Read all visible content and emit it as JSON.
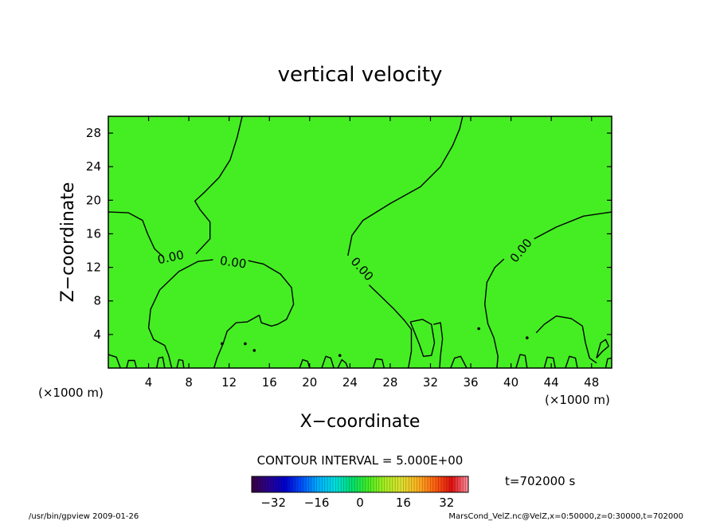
{
  "chart_data": {
    "type": "heatmap",
    "title": "vertical velocity",
    "xlabel": "X−coordinate",
    "ylabel": "Z−coordinate",
    "x_unit_left": "(×1000 m)",
    "x_unit_right": "(×1000 m)",
    "xlim": [
      0,
      50
    ],
    "ylim": [
      0,
      30
    ],
    "xticks": [
      4,
      8,
      12,
      16,
      20,
      24,
      28,
      32,
      36,
      40,
      44,
      48
    ],
    "yticks": [
      4,
      8,
      12,
      16,
      20,
      24,
      28
    ],
    "xtick_labels": [
      "4",
      "8",
      "12",
      "16",
      "20",
      "24",
      "28",
      "32",
      "36",
      "40",
      "44",
      "48"
    ],
    "ytick_labels": [
      "4",
      "8",
      "12",
      "16",
      "20",
      "24",
      "28"
    ],
    "field_background_color": "#44ee22",
    "contour_line_color": "#000000",
    "contour_level": 0.0,
    "contour_labels": [
      {
        "text": "0.00",
        "x": 6.2,
        "y": 13.2,
        "angle": -12
      },
      {
        "text": "0.00",
        "x": 12.4,
        "y": 12.6,
        "angle": 8
      },
      {
        "text": "0.00",
        "x": 25.2,
        "y": 11.8,
        "angle": 48
      },
      {
        "text": "0.00",
        "x": 41.0,
        "y": 14.0,
        "angle": -50
      }
    ],
    "contour_lines": [
      [
        [
          0,
          18.6
        ],
        [
          2,
          18.5
        ],
        [
          3.4,
          17.6
        ],
        [
          3.9,
          16.0
        ],
        [
          4.6,
          14.2
        ],
        [
          5.5,
          13.2
        ]
      ],
      [
        [
          8.7,
          13.6
        ],
        [
          10.1,
          15.4
        ],
        [
          10.1,
          17.4
        ],
        [
          9.1,
          18.9
        ],
        [
          8.6,
          19.9
        ],
        [
          9.6,
          21.0
        ],
        [
          11,
          22.7
        ],
        [
          12.1,
          24.8
        ],
        [
          12.8,
          27.5
        ],
        [
          13.3,
          30
        ]
      ],
      [
        [
          10.4,
          12.9
        ],
        [
          8.9,
          12.7
        ],
        [
          7,
          11.5
        ],
        [
          5.1,
          9.3
        ],
        [
          4.2,
          7.0
        ],
        [
          4.0,
          4.8
        ],
        [
          4.5,
          3.4
        ],
        [
          5.6,
          2.7
        ],
        [
          6.0,
          1.5
        ],
        [
          6.3,
          0
        ]
      ],
      [
        [
          13.9,
          12.8
        ],
        [
          15.4,
          12.4
        ],
        [
          17.1,
          11.2
        ],
        [
          18.2,
          9.6
        ],
        [
          18.4,
          7.6
        ],
        [
          17.7,
          5.8
        ],
        [
          16.8,
          5.2
        ],
        [
          16.2,
          5.0
        ],
        [
          15.2,
          5.4
        ],
        [
          15.0,
          6.3
        ]
      ],
      [
        [
          15.0,
          6.3
        ],
        [
          13.8,
          5.5
        ],
        [
          12.7,
          5.4
        ],
        [
          11.8,
          4.4
        ],
        [
          11.4,
          2.9
        ],
        [
          10.8,
          1.2
        ],
        [
          10.5,
          0
        ]
      ],
      [
        [
          23.8,
          13.4
        ],
        [
          24.2,
          15.8
        ],
        [
          25.3,
          17.6
        ],
        [
          28,
          19.6
        ],
        [
          31,
          21.6
        ],
        [
          33,
          24.0
        ],
        [
          34.2,
          26.5
        ],
        [
          34.9,
          28.5
        ],
        [
          35.2,
          30
        ]
      ],
      [
        [
          25.9,
          9.9
        ],
        [
          27.2,
          8.4
        ],
        [
          28.4,
          7.0
        ],
        [
          29.4,
          5.7
        ],
        [
          30.1,
          4.6
        ],
        [
          30.1,
          2.0
        ],
        [
          29.8,
          0
        ]
      ],
      [
        [
          30.0,
          5.5
        ],
        [
          31.2,
          5.8
        ],
        [
          32.1,
          5.2
        ],
        [
          32.4,
          3.0
        ],
        [
          32.1,
          1.5
        ],
        [
          31.3,
          1.4
        ],
        [
          30.9,
          2.8
        ],
        [
          30.4,
          4.3
        ],
        [
          30.0,
          5.5
        ]
      ],
      [
        [
          32.3,
          5.2
        ],
        [
          33.0,
          5.4
        ],
        [
          33.2,
          3.5
        ],
        [
          33.0,
          1.5
        ],
        [
          32.9,
          0
        ]
      ],
      [
        [
          39.3,
          13.0
        ],
        [
          38.4,
          12.0
        ],
        [
          37.6,
          10.2
        ],
        [
          37.4,
          7.6
        ],
        [
          37.7,
          5.3
        ],
        [
          38.3,
          3.6
        ],
        [
          38.7,
          1.4
        ],
        [
          38.6,
          0
        ]
      ],
      [
        [
          42.3,
          15.4
        ],
        [
          44.5,
          16.8
        ],
        [
          47.2,
          18.1
        ],
        [
          50,
          18.6
        ]
      ],
      [
        [
          42.5,
          4.2
        ],
        [
          43.3,
          5.2
        ],
        [
          44.5,
          6.2
        ],
        [
          46.0,
          5.9
        ],
        [
          47.1,
          5.0
        ],
        [
          47.4,
          3.0
        ],
        [
          47.8,
          1.2
        ],
        [
          48.5,
          0.6
        ]
      ],
      [
        [
          48.5,
          1.2
        ],
        [
          48.9,
          3.0
        ],
        [
          49.4,
          3.4
        ],
        [
          49.7,
          2.6
        ],
        [
          49.1,
          2.0
        ],
        [
          48.5,
          1.2
        ]
      ],
      [
        [
          0.0,
          1.6
        ],
        [
          0.8,
          1.3
        ],
        [
          1.2,
          0
        ]
      ],
      [
        [
          1.8,
          0
        ],
        [
          2.0,
          0.9
        ],
        [
          2.6,
          0.9
        ],
        [
          2.8,
          0
        ]
      ],
      [
        [
          4.8,
          0
        ],
        [
          5.0,
          1.2
        ],
        [
          5.4,
          1.3
        ],
        [
          5.6,
          0
        ]
      ],
      [
        [
          6.8,
          0
        ],
        [
          7.0,
          1.0
        ],
        [
          7.4,
          0.9
        ],
        [
          7.5,
          0
        ]
      ],
      [
        [
          19.0,
          0
        ],
        [
          19.3,
          1.0
        ],
        [
          19.8,
          0.8
        ],
        [
          20.0,
          0
        ]
      ],
      [
        [
          21.2,
          0
        ],
        [
          21.6,
          1.4
        ],
        [
          22.1,
          1.2
        ],
        [
          22.4,
          0
        ]
      ],
      [
        [
          22.8,
          0
        ],
        [
          23.2,
          1.0
        ],
        [
          23.6,
          0.6
        ],
        [
          23.8,
          0
        ]
      ],
      [
        [
          26.3,
          0
        ],
        [
          26.6,
          1.1
        ],
        [
          27.2,
          1.0
        ],
        [
          27.4,
          0
        ]
      ],
      [
        [
          34.0,
          0
        ],
        [
          34.4,
          1.2
        ],
        [
          35.0,
          1.4
        ],
        [
          35.6,
          0
        ]
      ],
      [
        [
          40.5,
          0
        ],
        [
          40.9,
          1.6
        ],
        [
          41.4,
          1.5
        ],
        [
          41.6,
          0
        ]
      ],
      [
        [
          43.3,
          0
        ],
        [
          43.6,
          1.3
        ],
        [
          44.2,
          1.2
        ],
        [
          44.4,
          0
        ]
      ],
      [
        [
          45.4,
          0
        ],
        [
          45.8,
          1.4
        ],
        [
          46.4,
          1.2
        ],
        [
          46.6,
          0
        ]
      ],
      [
        [
          49.4,
          0
        ],
        [
          49.6,
          1.1
        ],
        [
          50.0,
          1.2
        ]
      ]
    ],
    "contour_dots": [
      [
        11.3,
        2.9
      ],
      [
        13.6,
        2.9
      ],
      [
        14.5,
        2.1
      ],
      [
        23.0,
        1.5
      ],
      [
        36.8,
        4.7
      ],
      [
        41.6,
        3.6
      ]
    ],
    "colorbar": {
      "ticks": [
        -32,
        -16,
        0,
        16,
        32
      ],
      "tick_labels": [
        "−32",
        "−16",
        "0",
        "16",
        "32"
      ],
      "range": [
        -40,
        40
      ],
      "colors": [
        "#3a0040",
        "#2a0090",
        "#0000d0",
        "#0050ff",
        "#00b0ff",
        "#00e0e0",
        "#00e070",
        "#44ee22",
        "#a8ee22",
        "#e0e030",
        "#ffb020",
        "#ff6010",
        "#e01010",
        "#ff90a0"
      ]
    }
  },
  "contour_interval_text": "CONTOUR INTERVAL = 5.000E+00",
  "time_text": "t=702000  s",
  "footer_left": "/usr/bin/gpview   2009-01-26",
  "footer_right": "MarsCond_VelZ.nc@VelZ,x=0:50000,z=0:30000,t=702000"
}
